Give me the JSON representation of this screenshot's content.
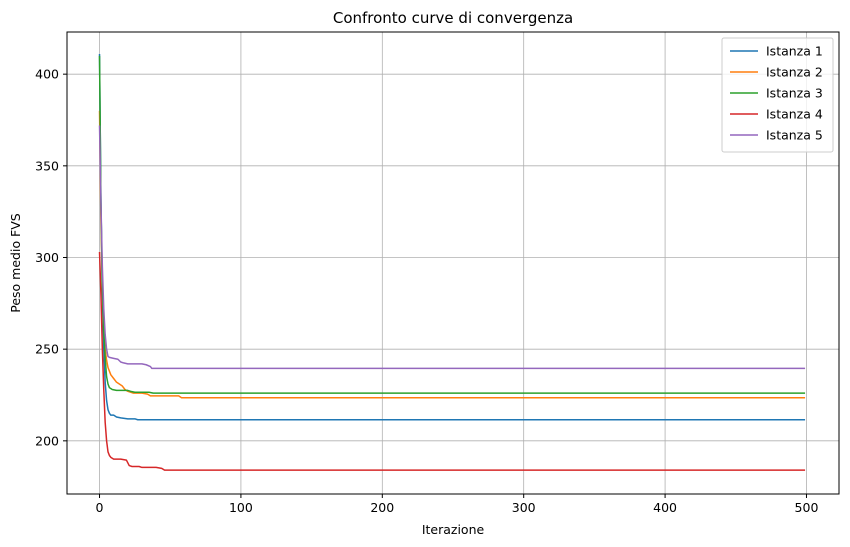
{
  "chart_data": {
    "type": "line",
    "title": "Confronto curve di convergenza",
    "xlabel": "Iterazione",
    "ylabel": "Peso medio FVS",
    "xlim": [
      -23,
      523
    ],
    "ylim": [
      171,
      423
    ],
    "xticks": [
      0,
      100,
      200,
      300,
      400,
      500
    ],
    "yticks": [
      200,
      250,
      300,
      350,
      400
    ],
    "grid": true,
    "legend_position": "top-right",
    "series": [
      {
        "name": "Istanza 1",
        "color": "#1f77b4",
        "points": [
          [
            0,
            411
          ],
          [
            1,
            330
          ],
          [
            2,
            280
          ],
          [
            3,
            250
          ],
          [
            4,
            232
          ],
          [
            5,
            222
          ],
          [
            6,
            217
          ],
          [
            7,
            215
          ],
          [
            8,
            214
          ],
          [
            10,
            214
          ],
          [
            12,
            213
          ],
          [
            15,
            212.5
          ],
          [
            20,
            212
          ],
          [
            25,
            212
          ],
          [
            27,
            211.5
          ],
          [
            35,
            211.5
          ],
          [
            60,
            211.5
          ],
          [
            100,
            211.5
          ],
          [
            499,
            211.5
          ]
        ]
      },
      {
        "name": "Istanza 2",
        "color": "#ff7f0e",
        "points": [
          [
            0,
            380
          ],
          [
            1,
            320
          ],
          [
            2,
            285
          ],
          [
            3,
            262
          ],
          [
            4,
            250
          ],
          [
            5,
            244
          ],
          [
            6,
            240
          ],
          [
            8,
            236
          ],
          [
            10,
            234
          ],
          [
            12,
            232
          ],
          [
            14,
            231
          ],
          [
            16,
            230
          ],
          [
            18,
            228
          ],
          [
            20,
            227
          ],
          [
            24,
            226
          ],
          [
            30,
            226
          ],
          [
            34,
            225.5
          ],
          [
            36,
            224.5
          ],
          [
            50,
            224.5
          ],
          [
            56,
            224.5
          ],
          [
            58,
            223.5
          ],
          [
            499,
            223.5
          ]
        ]
      },
      {
        "name": "Istanza 3",
        "color": "#2ca02c",
        "points": [
          [
            0,
            410
          ],
          [
            1,
            330
          ],
          [
            2,
            285
          ],
          [
            3,
            260
          ],
          [
            4,
            245
          ],
          [
            5,
            235
          ],
          [
            6,
            231
          ],
          [
            7,
            229
          ],
          [
            9,
            228
          ],
          [
            12,
            227.5
          ],
          [
            20,
            227.5
          ],
          [
            22,
            227
          ],
          [
            25,
            226.5
          ],
          [
            35,
            226.5
          ],
          [
            38,
            226
          ],
          [
            499,
            226
          ]
        ]
      },
      {
        "name": "Istanza 4",
        "color": "#d62728",
        "points": [
          [
            0,
            303
          ],
          [
            1,
            280
          ],
          [
            2,
            250
          ],
          [
            3,
            228
          ],
          [
            4,
            210
          ],
          [
            5,
            200
          ],
          [
            6,
            194
          ],
          [
            7,
            192
          ],
          [
            8,
            191
          ],
          [
            10,
            190
          ],
          [
            15,
            190
          ],
          [
            19,
            189.5
          ],
          [
            20,
            188
          ],
          [
            21,
            186.5
          ],
          [
            23,
            186
          ],
          [
            28,
            186
          ],
          [
            30,
            185.5
          ],
          [
            35,
            185.5
          ],
          [
            40,
            185.5
          ],
          [
            44,
            185
          ],
          [
            46,
            184
          ],
          [
            499,
            184
          ]
        ]
      },
      {
        "name": "Istanza 5",
        "color": "#9467bd",
        "points": [
          [
            0,
            372
          ],
          [
            1,
            330
          ],
          [
            2,
            295
          ],
          [
            3,
            272
          ],
          [
            4,
            258
          ],
          [
            5,
            250
          ],
          [
            6,
            246
          ],
          [
            7,
            245.5
          ],
          [
            10,
            245
          ],
          [
            13,
            244.5
          ],
          [
            15,
            243
          ],
          [
            17,
            242.5
          ],
          [
            20,
            242
          ],
          [
            30,
            242
          ],
          [
            33,
            241.5
          ],
          [
            36,
            240.5
          ],
          [
            37,
            239.5
          ],
          [
            50,
            239.5
          ],
          [
            499,
            239.5
          ]
        ]
      }
    ]
  }
}
